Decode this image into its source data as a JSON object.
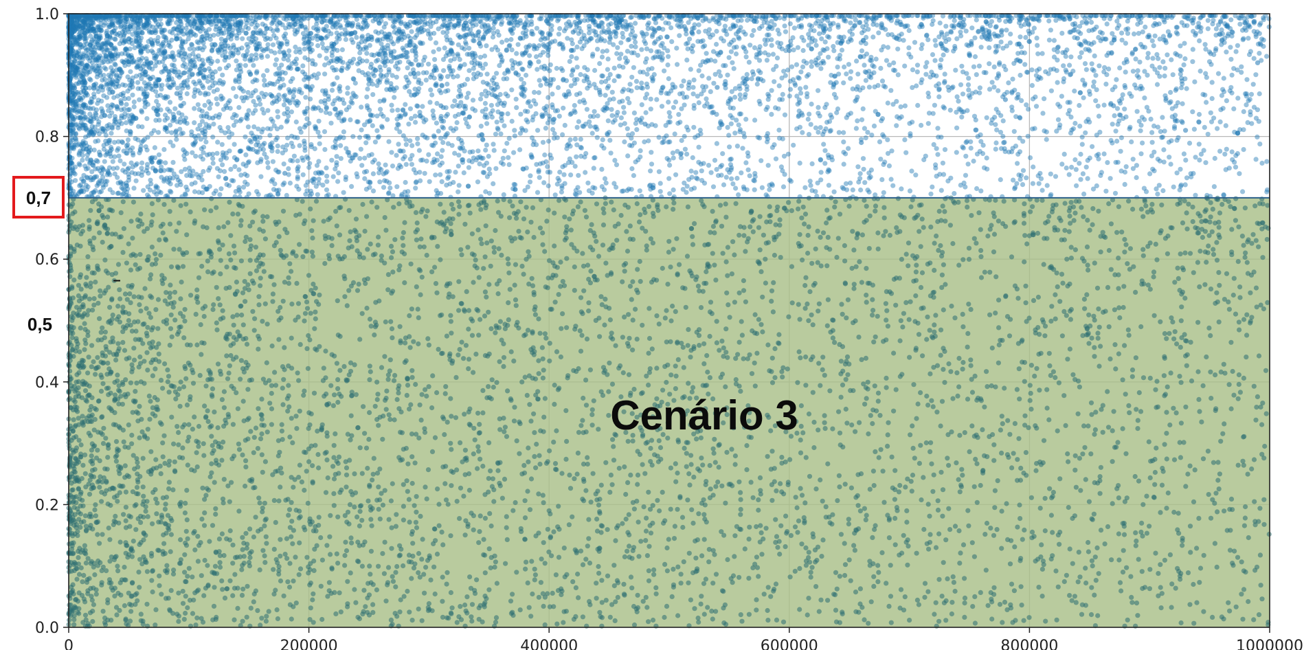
{
  "chart_data": {
    "type": "scatter",
    "title": "",
    "xlabel": "",
    "ylabel": "",
    "xlim": [
      0,
      1000000
    ],
    "ylim": [
      0.0,
      1.0
    ],
    "x_ticks": [
      0,
      200000,
      400000,
      600000,
      800000,
      1000000
    ],
    "x_tick_labels": [
      "0",
      "200000",
      "400000",
      "600000",
      "800000",
      "1000000"
    ],
    "y_ticks": [
      0.0,
      0.2,
      0.4,
      0.6,
      0.8,
      1.0
    ],
    "y_tick_labels": [
      "0.0",
      "0.2",
      "0.4",
      "0.6",
      "0.8",
      "1.0"
    ],
    "grid": true,
    "point_color": "#1f77b4",
    "series": [
      {
        "distribution": "dense scattered points, densest at low x and at y near 1.0",
        "approx_point_count": 12000,
        "sample_points": [
          {
            "x": 10000,
            "y": 0.98
          },
          {
            "x": 35000,
            "y": 0.95
          },
          {
            "x": 60000,
            "y": 0.91
          },
          {
            "x": 90000,
            "y": 0.87
          },
          {
            "x": 120000,
            "y": 0.83
          },
          {
            "x": 150000,
            "y": 0.78
          },
          {
            "x": 180000,
            "y": 0.74
          },
          {
            "x": 210000,
            "y": 0.96
          },
          {
            "x": 260000,
            "y": 0.9
          },
          {
            "x": 310000,
            "y": 0.85
          },
          {
            "x": 360000,
            "y": 0.93
          },
          {
            "x": 420000,
            "y": 0.97
          },
          {
            "x": 480000,
            "y": 0.82
          },
          {
            "x": 540000,
            "y": 0.88
          },
          {
            "x": 600000,
            "y": 0.94
          },
          {
            "x": 660000,
            "y": 0.79
          },
          {
            "x": 720000,
            "y": 0.9
          },
          {
            "x": 780000,
            "y": 0.86
          },
          {
            "x": 840000,
            "y": 0.96
          },
          {
            "x": 870000,
            "y": 0.85
          },
          {
            "x": 930000,
            "y": 0.81
          },
          {
            "x": 990000,
            "y": 0.92
          },
          {
            "x": 20000,
            "y": 0.62
          },
          {
            "x": 50000,
            "y": 0.5
          },
          {
            "x": 70000,
            "y": 0.41
          },
          {
            "x": 100000,
            "y": 0.31
          },
          {
            "x": 40000,
            "y": 0.28
          },
          {
            "x": 150000,
            "y": 0.55
          },
          {
            "x": 200000,
            "y": 0.27
          },
          {
            "x": 240000,
            "y": 0.63
          },
          {
            "x": 300000,
            "y": 0.46
          },
          {
            "x": 360000,
            "y": 0.67
          },
          {
            "x": 400000,
            "y": 0.19
          },
          {
            "x": 450000,
            "y": 0.52
          },
          {
            "x": 520000,
            "y": 0.34
          },
          {
            "x": 580000,
            "y": 0.6
          },
          {
            "x": 650000,
            "y": 0.11
          },
          {
            "x": 700000,
            "y": 0.44
          },
          {
            "x": 760000,
            "y": 0.57
          },
          {
            "x": 820000,
            "y": 0.22
          },
          {
            "x": 880000,
            "y": 0.38
          },
          {
            "x": 940000,
            "y": 0.65
          },
          {
            "x": 980000,
            "y": 0.09
          }
        ]
      }
    ],
    "shaded_region": {
      "label": "Cenário 3",
      "y_range": [
        0.0,
        0.7
      ],
      "x_range": [
        0,
        1000000
      ],
      "color": "#a9c089"
    },
    "annotations": {
      "threshold_box_label": "0,7",
      "threshold_box_color": "#e31a1c",
      "secondary_label": "0,5",
      "dash_mark": "–"
    }
  }
}
